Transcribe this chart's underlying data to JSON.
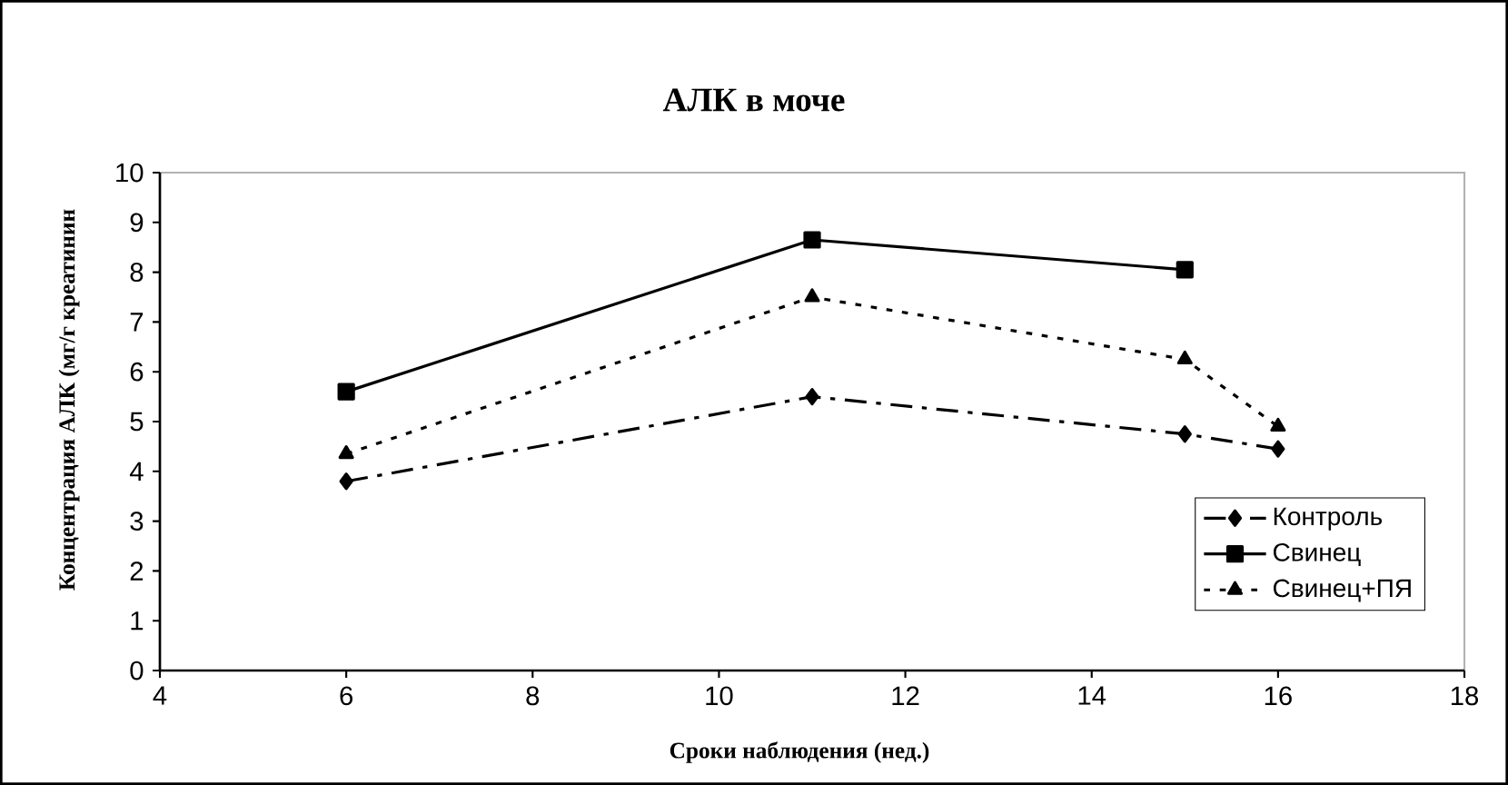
{
  "chart_data": {
    "type": "line",
    "title": "АЛК в моче",
    "xlabel": "Сроки наблюдения  (нед.)",
    "ylabel": "Концентрация АЛК (мг/г креатинин",
    "x": [
      6,
      11,
      15,
      16
    ],
    "series": [
      {
        "name": "Контроль",
        "color": "#000000",
        "values": [
          3.8,
          5.5,
          4.75,
          4.45
        ],
        "marker": "diamond",
        "line_style": "dashed"
      },
      {
        "name": "Свинец",
        "color": "#000000",
        "values": [
          5.6,
          8.65,
          8.05,
          null
        ],
        "marker": "square",
        "line_style": "solid"
      },
      {
        "name": "Свинец+ПЯ",
        "color": "#000000",
        "values": [
          4.35,
          7.5,
          6.25,
          4.9
        ],
        "marker": "triangle",
        "line_style": "dotted"
      }
    ],
    "xlim": [
      4,
      18
    ],
    "xticks": [
      4,
      6,
      8,
      10,
      12,
      14,
      16,
      18
    ],
    "ylim": [
      0,
      10
    ],
    "yticks": [
      0,
      1,
      2,
      3,
      4,
      5,
      6,
      7,
      8,
      9,
      10
    ],
    "grid": false,
    "legend": "bottom right"
  }
}
